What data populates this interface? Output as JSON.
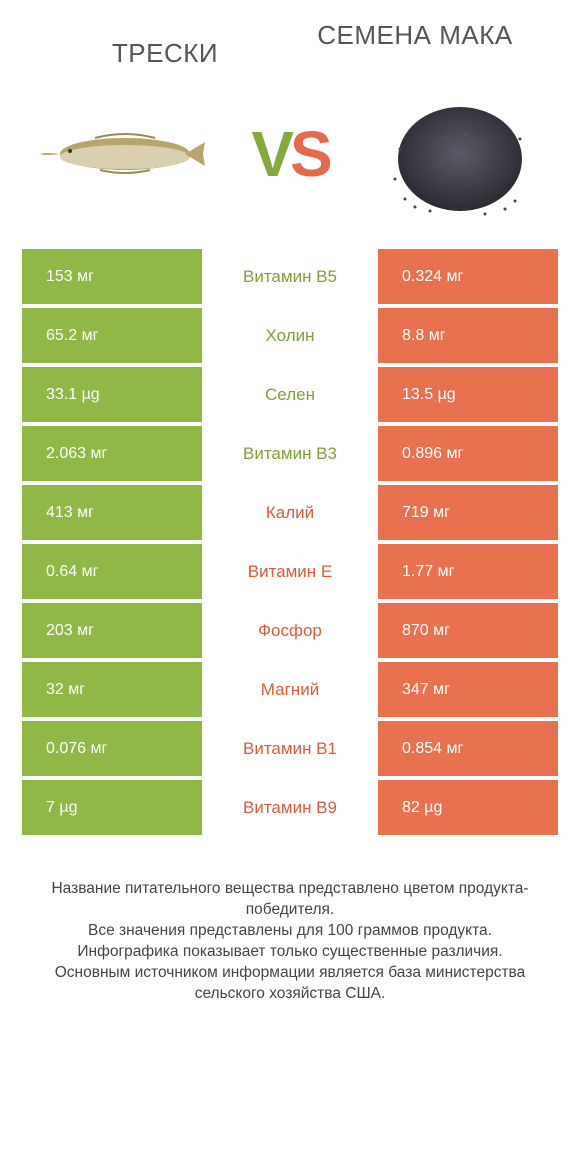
{
  "header": {
    "left_title": "ТРЕСКИ",
    "right_title": "СЕМЕНА МАКА"
  },
  "vs": {
    "v": "V",
    "s": "S"
  },
  "colors": {
    "green": "#90b847",
    "orange": "#e8714f",
    "mid_green": "#7ca038",
    "mid_orange": "#d85c3c"
  },
  "rows": [
    {
      "left": "153 мг",
      "label": "Витамин B5",
      "right": "0.324 мг",
      "winner": "left"
    },
    {
      "left": "65.2 мг",
      "label": "Холин",
      "right": "8.8 мг",
      "winner": "left"
    },
    {
      "left": "33.1 µg",
      "label": "Селен",
      "right": "13.5 µg",
      "winner": "left"
    },
    {
      "left": "2.063 мг",
      "label": "Витамин B3",
      "right": "0.896 мг",
      "winner": "left"
    },
    {
      "left": "413 мг",
      "label": "Калий",
      "right": "719 мг",
      "winner": "right"
    },
    {
      "left": "0.64 мг",
      "label": "Витамин E",
      "right": "1.77 мг",
      "winner": "right"
    },
    {
      "left": "203 мг",
      "label": "Фосфор",
      "right": "870 мг",
      "winner": "right"
    },
    {
      "left": "32 мг",
      "label": "Магний",
      "right": "347 мг",
      "winner": "right"
    },
    {
      "left": "0.076 мг",
      "label": "Витамин B1",
      "right": "0.854 мг",
      "winner": "right"
    },
    {
      "left": "7 µg",
      "label": "Витамин B9",
      "right": "82 µg",
      "winner": "right"
    }
  ],
  "footer": {
    "line1": "Название питательного вещества представлено цветом продукта-победителя.",
    "line2": "Все значения представлены для 100 граммов продукта.",
    "line3": "Инфографика показывает только существенные различия.",
    "line4": "Основным источником информации является база министерства сельского хозяйства США."
  }
}
